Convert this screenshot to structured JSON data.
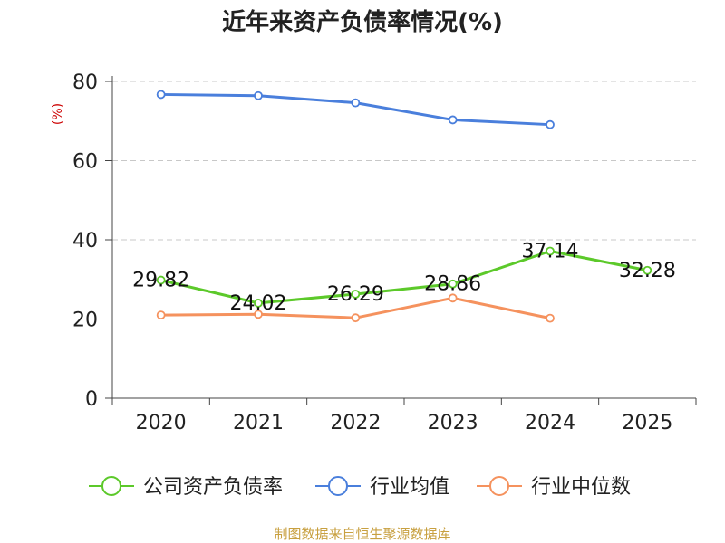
{
  "chart_data": {
    "type": "line",
    "title": "近年来资产负债率情况(%)",
    "unit_label": "(%)",
    "x": [
      "2020",
      "2021",
      "2022",
      "2023",
      "2024",
      "2025"
    ],
    "ylim": [
      0,
      80
    ],
    "yticks": [
      0,
      20,
      40,
      60,
      80
    ],
    "grid": true,
    "legend_position": "bottom",
    "series": [
      {
        "name": "公司资产负债率",
        "color": "#5cc92a",
        "values": [
          29.82,
          24.02,
          26.29,
          28.86,
          37.14,
          32.28
        ],
        "labels": [
          "29.82",
          "24.02",
          "26.29",
          "28.86",
          "37.14",
          "32.28"
        ]
      },
      {
        "name": "行业均值",
        "color": "#4a7fdc",
        "values": [
          76.7,
          76.4,
          74.6,
          70.3,
          69.1,
          null
        ]
      },
      {
        "name": "行业中位数",
        "color": "#f5925e",
        "values": [
          21.0,
          21.2,
          20.3,
          25.3,
          20.2,
          null
        ]
      }
    ]
  },
  "source": "制图数据来自恒生聚源数据库"
}
